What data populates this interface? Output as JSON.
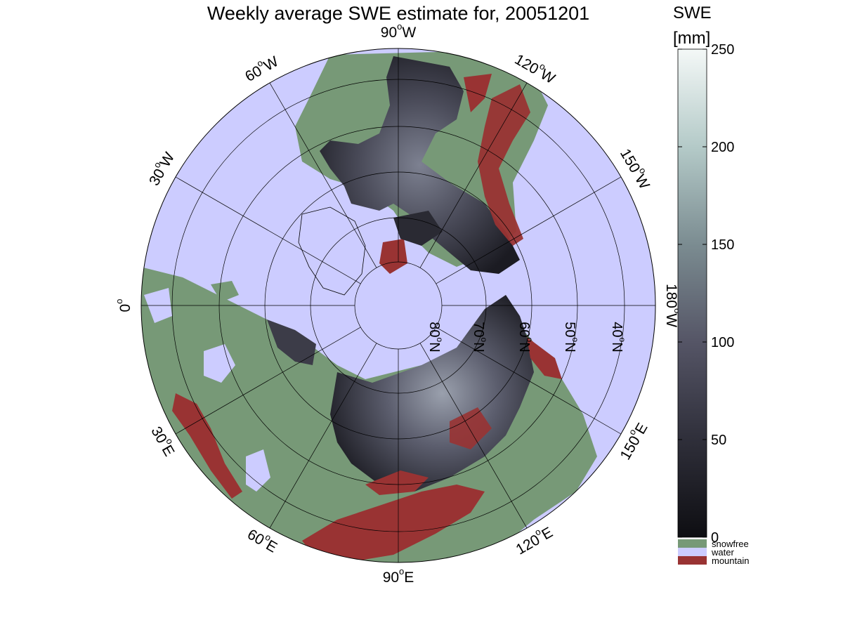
{
  "title": "Weekly average SWE estimate for, 20051201",
  "map": {
    "projection": "north polar stereographic",
    "longitude_labels": [
      {
        "deg": "90",
        "dir": "W",
        "angle_deg": 90
      },
      {
        "deg": "120",
        "dir": "W",
        "angle_deg": 60
      },
      {
        "deg": "150",
        "dir": "W",
        "angle_deg": 30
      },
      {
        "deg": "180",
        "dir": "W",
        "angle_deg": 0
      },
      {
        "deg": "150",
        "dir": "E",
        "angle_deg": -30
      },
      {
        "deg": "120",
        "dir": "E",
        "angle_deg": -60
      },
      {
        "deg": "90",
        "dir": "E",
        "angle_deg": -90
      },
      {
        "deg": "60",
        "dir": "E",
        "angle_deg": -120
      },
      {
        "deg": "30",
        "dir": "E",
        "angle_deg": -150
      },
      {
        "deg": "0",
        "dir": "",
        "angle_deg": 180
      },
      {
        "deg": "30",
        "dir": "W",
        "angle_deg": 150
      },
      {
        "deg": "60",
        "dir": "W",
        "angle_deg": 120
      }
    ],
    "latitude_labels": [
      {
        "deg": "80",
        "dir": "N",
        "lat": 80
      },
      {
        "deg": "70",
        "dir": "N",
        "lat": 70
      },
      {
        "deg": "60",
        "dir": "N",
        "lat": 60
      },
      {
        "deg": "50",
        "dir": "N",
        "lat": 50
      },
      {
        "deg": "40",
        "dir": "N",
        "lat": 40
      }
    ],
    "colors": {
      "water": "#ccccff",
      "snowfree": "#779977",
      "mountain": "#993333",
      "swe_low": "#0e0e12",
      "swe_mid": "#555566",
      "swe_high": "#f4f8f7",
      "grid": "#000000"
    }
  },
  "colorbar": {
    "label_line1": "SWE",
    "label_line2": "[mm]",
    "min": 0,
    "max": 250,
    "ticks": [
      "0",
      "50",
      "100",
      "150",
      "200",
      "250"
    ],
    "categories": [
      {
        "name": "snowfree",
        "color": "#779977"
      },
      {
        "name": "water",
        "color": "#ccccff"
      },
      {
        "name": "mountain",
        "color": "#993333"
      }
    ]
  }
}
